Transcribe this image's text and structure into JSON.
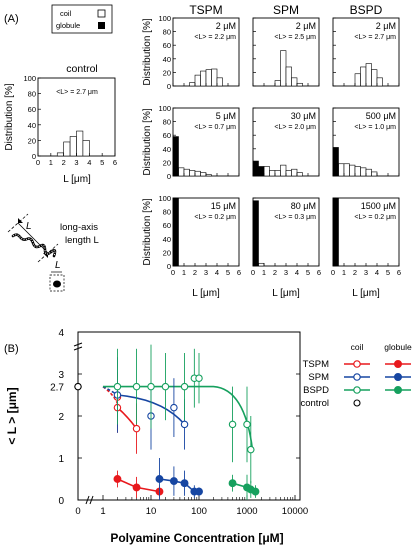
{
  "panel_labels": {
    "a": "(A)",
    "b": "(B)"
  },
  "panel_a": {
    "legend": {
      "coil": "coil",
      "globule": "globule"
    },
    "control_title": "control",
    "control_annotation": "<L> = 2.7 μm",
    "y_axis_label": "Distribution [%]",
    "x_axis_label": "L [μm]",
    "column_titles": [
      "TSPM",
      "SPM",
      "BSPD"
    ],
    "row_annotations": [
      [
        "2 μM\n<L> = 2.2 μm",
        "2 μM\n<L> = 2.5 μm",
        "2 μM\n<L> = 2.7 μm"
      ],
      [
        "5 μM\n<L> = 0.7 μm",
        "30 μM\n<L> = 2.0 μm",
        "500 μM\n<L> = 1.0 μm"
      ],
      [
        "15 μM\n<L> = 0.2 μm",
        "80 μM\n<L> = 0.3 μm",
        "1500 μM\n<L> = 0.2 μm"
      ]
    ],
    "y_ticks": [
      "0",
      "20",
      "40",
      "60",
      "80",
      "100"
    ],
    "x_ticks": [
      "0",
      "1",
      "2",
      "3",
      "4",
      "5",
      "6"
    ],
    "schematic_long_axis": "long-axis\nlength L",
    "schematic_L": "L",
    "schematic_L_small": "L"
  },
  "chart_data": [
    {
      "type": "bar",
      "title": "control",
      "xlabel": "L [μm]",
      "ylabel": "Distribution [%]",
      "xlim": [
        0,
        6
      ],
      "ylim": [
        0,
        100
      ],
      "bin_width": 0.5,
      "bin_starts": [
        0,
        0.5,
        1,
        1.5,
        2,
        2.5,
        3,
        3.5,
        4,
        4.5,
        5,
        5.5
      ],
      "series": [
        {
          "name": "coil",
          "values": [
            0,
            0,
            0,
            4,
            18,
            25,
            32,
            20,
            0,
            0,
            0,
            0
          ]
        },
        {
          "name": "globule",
          "values": [
            0,
            0,
            0,
            0,
            0,
            0,
            0,
            0,
            0,
            0,
            0,
            0
          ]
        }
      ]
    },
    {
      "type": "bar",
      "title": "TSPM",
      "annotation": "2 μM",
      "xlabel": "",
      "ylabel": "Distribution [%]",
      "xlim": [
        0,
        6
      ],
      "ylim": [
        0,
        100
      ],
      "series": [
        {
          "name": "coil",
          "values": [
            0,
            0,
            0,
            5,
            16,
            22,
            24,
            25,
            12,
            0,
            0,
            0
          ]
        },
        {
          "name": "globule",
          "values": [
            0,
            0,
            0,
            0,
            0,
            0,
            0,
            0,
            0,
            0,
            0,
            0
          ]
        }
      ]
    },
    {
      "type": "bar",
      "title": "SPM",
      "annotation": "2 μM",
      "xlabel": "",
      "ylabel": "",
      "xlim": [
        0,
        6
      ],
      "ylim": [
        0,
        100
      ],
      "series": [
        {
          "name": "coil",
          "values": [
            0,
            0,
            0,
            0,
            8,
            52,
            28,
            12,
            4,
            0,
            0,
            0
          ]
        },
        {
          "name": "globule",
          "values": [
            0,
            0,
            0,
            0,
            0,
            0,
            0,
            0,
            0,
            0,
            0,
            0
          ]
        }
      ]
    },
    {
      "type": "bar",
      "title": "BSPD",
      "annotation": "2 μM",
      "xlabel": "",
      "ylabel": "",
      "xlim": [
        0,
        6
      ],
      "ylim": [
        0,
        100
      ],
      "series": [
        {
          "name": "coil",
          "values": [
            0,
            0,
            0,
            0,
            18,
            28,
            33,
            24,
            12,
            0,
            0,
            0
          ]
        },
        {
          "name": "globule",
          "values": [
            0,
            0,
            0,
            0,
            0,
            0,
            0,
            0,
            0,
            0,
            0,
            0
          ]
        }
      ]
    },
    {
      "type": "bar",
      "annotation": "5 μM",
      "xlabel": "",
      "ylabel": "Distribution [%]",
      "xlim": [
        0,
        6
      ],
      "ylim": [
        0,
        100
      ],
      "series": [
        {
          "name": "coil",
          "values": [
            0,
            12,
            10,
            8,
            7,
            5,
            2,
            0,
            0,
            0,
            0,
            0
          ]
        },
        {
          "name": "globule",
          "values": [
            58,
            0,
            0,
            0,
            0,
            0,
            0,
            0,
            0,
            0,
            0,
            0
          ]
        }
      ]
    },
    {
      "type": "bar",
      "annotation": "30 μM",
      "xlabel": "",
      "ylabel": "",
      "xlim": [
        0,
        6
      ],
      "ylim": [
        0,
        100
      ],
      "series": [
        {
          "name": "coil",
          "values": [
            0,
            10,
            14,
            8,
            8,
            16,
            8,
            10,
            5,
            0,
            0,
            0
          ]
        },
        {
          "name": "globule",
          "values": [
            22,
            14,
            0,
            0,
            0,
            0,
            0,
            0,
            0,
            0,
            0,
            0
          ]
        }
      ]
    },
    {
      "type": "bar",
      "annotation": "500 μM",
      "xlabel": "",
      "ylabel": "",
      "xlim": [
        0,
        6
      ],
      "ylim": [
        0,
        100
      ],
      "series": [
        {
          "name": "coil",
          "values": [
            0,
            18,
            18,
            16,
            14,
            12,
            10,
            6,
            0,
            0,
            0,
            0
          ]
        },
        {
          "name": "globule",
          "values": [
            42,
            0,
            0,
            0,
            0,
            0,
            0,
            0,
            0,
            0,
            0,
            0
          ]
        }
      ]
    },
    {
      "type": "bar",
      "annotation": "15 μM",
      "xlabel": "L [μm]",
      "ylabel": "Distribution [%]",
      "xlim": [
        0,
        6
      ],
      "ylim": [
        0,
        100
      ],
      "series": [
        {
          "name": "coil",
          "values": [
            0,
            0,
            0,
            0,
            0,
            0,
            0,
            0,
            0,
            0,
            0,
            0
          ]
        },
        {
          "name": "globule",
          "values": [
            100,
            0,
            0,
            0,
            0,
            0,
            0,
            0,
            0,
            0,
            0,
            0
          ]
        }
      ]
    },
    {
      "type": "bar",
      "annotation": "80 μM",
      "xlabel": "L [μm]",
      "ylabel": "",
      "xlim": [
        0,
        6
      ],
      "ylim": [
        0,
        100
      ],
      "series": [
        {
          "name": "coil",
          "values": [
            0,
            4,
            0,
            0,
            0,
            0,
            0,
            0,
            0,
            0,
            0,
            0
          ]
        },
        {
          "name": "globule",
          "values": [
            96,
            0,
            0,
            0,
            0,
            0,
            0,
            0,
            0,
            0,
            0,
            0
          ]
        }
      ]
    },
    {
      "type": "bar",
      "annotation": "1500 μM",
      "xlabel": "L [μm]",
      "ylabel": "",
      "xlim": [
        0,
        6
      ],
      "ylim": [
        0,
        100
      ],
      "series": [
        {
          "name": "coil",
          "values": [
            0,
            0,
            0,
            0,
            0,
            0,
            0,
            0,
            0,
            0,
            0,
            0
          ]
        },
        {
          "name": "globule",
          "values": [
            100,
            0,
            0,
            0,
            0,
            0,
            0,
            0,
            0,
            0,
            0,
            0
          ]
        }
      ]
    },
    {
      "type": "scatter",
      "xlabel": "Polyamine Concentration [μM]",
      "ylabel": "< L > [μm]",
      "x_scale": "log",
      "xlim": [
        0,
        10000
      ],
      "ylim": [
        0,
        4
      ],
      "x_tick_labels": [
        "0",
        "1",
        "10",
        "100",
        "1000",
        "10000"
      ],
      "y_tick_labels": [
        "0",
        "1",
        "2",
        "3",
        "4"
      ],
      "y_special_label": "2.7",
      "legend_headers": [
        "coil",
        "globule"
      ],
      "legend_rows": [
        "TSPM",
        "SPM",
        "BSPD",
        "control"
      ],
      "colors": {
        "TSPM": "#e8191d",
        "SPM": "#1746a2",
        "BSPD": "#16a05e",
        "control": "#000000"
      },
      "series": [
        {
          "name": "TSPM",
          "state": "coil",
          "x": [
            2,
            2,
            5
          ],
          "y": [
            2.2,
            2.45,
            1.7
          ],
          "err": [
            0.6,
            0.6,
            0.6
          ]
        },
        {
          "name": "TSPM",
          "state": "globule",
          "x": [
            2,
            5,
            15
          ],
          "y": [
            0.5,
            0.3,
            0.2
          ],
          "err": [
            0.2,
            0.25,
            0.15
          ]
        },
        {
          "name": "SPM",
          "state": "coil",
          "x": [
            2,
            10,
            30,
            50
          ],
          "y": [
            2.5,
            2.0,
            2.2,
            1.8
          ],
          "err": [
            0.9,
            0.8,
            0.7,
            0.6
          ]
        },
        {
          "name": "SPM",
          "state": "globule",
          "x": [
            15,
            30,
            50,
            80,
            100
          ],
          "y": [
            0.5,
            0.45,
            0.4,
            0.2,
            0.2
          ],
          "err": [
            0.5,
            0.35,
            0.3,
            0.15,
            0.1
          ]
        },
        {
          "name": "BSPD",
          "state": "coil",
          "x": [
            2,
            5,
            10,
            20,
            50,
            80,
            100,
            500,
            1000,
            1200
          ],
          "y": [
            2.7,
            2.7,
            2.7,
            2.7,
            2.7,
            2.9,
            2.9,
            1.8,
            1.8,
            1.2
          ],
          "err": [
            0.9,
            0.9,
            1.0,
            0.8,
            0.8,
            0.7,
            0.6,
            0.9,
            0.9,
            0.8
          ]
        },
        {
          "name": "BSPD",
          "state": "globule",
          "x": [
            500,
            1000,
            1200,
            1500
          ],
          "y": [
            0.4,
            0.3,
            0.25,
            0.2
          ],
          "err": [
            0.2,
            0.3,
            0.2,
            0.15
          ]
        },
        {
          "name": "control",
          "state": "coil",
          "x": [
            0
          ],
          "y": [
            2.7
          ],
          "err": [
            0
          ]
        }
      ]
    }
  ]
}
